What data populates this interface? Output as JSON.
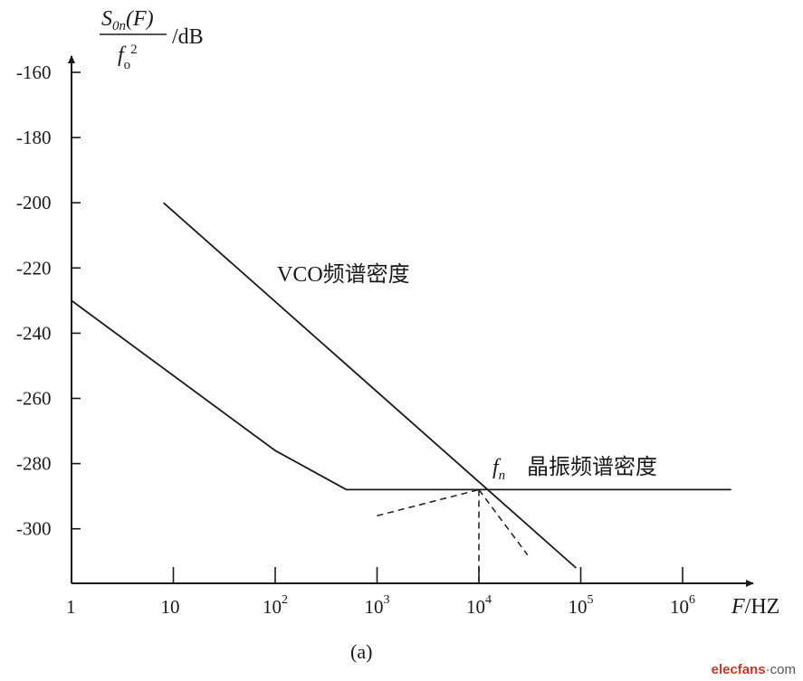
{
  "chart_data": {
    "type": "line",
    "y_axis_label": {
      "numerator_main": "S",
      "numerator_sub": "0n",
      "numerator_arg": "(F)",
      "denominator_main": "f",
      "denominator_sub": "o",
      "denominator_sup": "2",
      "unit": "/dB"
    },
    "x_axis_label": {
      "italic": "F",
      "rest": "/HZ"
    },
    "y_ticks": [
      -160,
      -180,
      -200,
      -220,
      -240,
      -260,
      -280,
      -300
    ],
    "ylim": [
      -318,
      -150
    ],
    "x_scale": "log",
    "xlim": [
      1,
      3000000
    ],
    "x_ticks": [
      {
        "value": 1,
        "base": "1",
        "exp": ""
      },
      {
        "value": 10,
        "base": "10",
        "exp": ""
      },
      {
        "value": 100,
        "base": "10",
        "exp": "2"
      },
      {
        "value": 1000,
        "base": "10",
        "exp": "3"
      },
      {
        "value": 10000,
        "base": "10",
        "exp": "4"
      },
      {
        "value": 100000,
        "base": "10",
        "exp": "5"
      },
      {
        "value": 1000000,
        "base": "10",
        "exp": "6"
      }
    ],
    "series": [
      {
        "name": "VCO频谱密度",
        "points": [
          [
            8,
            -200
          ],
          [
            90000,
            -312
          ]
        ]
      },
      {
        "name": "晶振频谱密度",
        "points": [
          [
            1,
            -230
          ],
          [
            100,
            -276
          ],
          [
            500,
            -288
          ],
          [
            3000000,
            -288
          ]
        ]
      }
    ],
    "dashed_lines": [
      [
        [
          1000,
          -296
        ],
        [
          10000,
          -288
        ]
      ],
      [
        [
          10000,
          -288
        ],
        [
          30000,
          -308
        ]
      ],
      [
        [
          10000,
          -288
        ],
        [
          10000,
          -316
        ]
      ]
    ],
    "annotations": [
      {
        "italic": "f",
        "sub": "n"
      }
    ],
    "grid": false
  },
  "caption": "(a)",
  "watermark": {
    "brand": "elecfans",
    "suffix": "·com"
  }
}
